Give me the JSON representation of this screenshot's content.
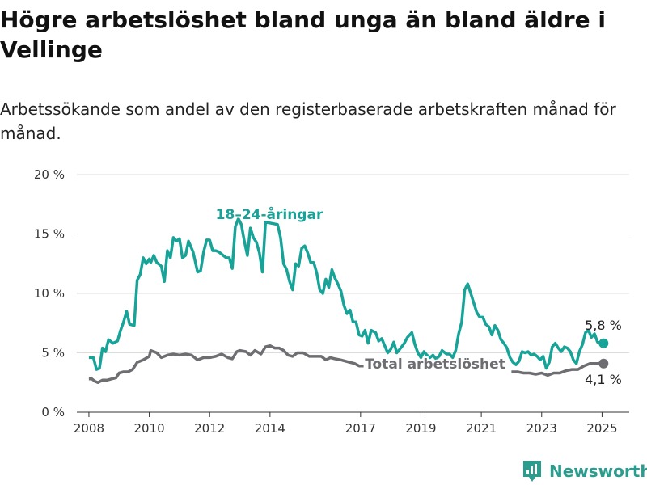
{
  "title": "Högre arbetslöshet bland unga än bland äldre i Vellinge",
  "subtitle": "Arbetssökande som andel av den registerbaserade arbetskraften månad för månad.",
  "brand": {
    "name": "Newsworthy"
  },
  "colors": {
    "youth": "#17a398",
    "total": "#6d6d72",
    "grid": "#dcdcdc",
    "axis": "#333333",
    "brand": "#2a9d8f"
  },
  "chart_data": {
    "type": "line",
    "ylim": [
      0,
      20
    ],
    "xlim": [
      2007.6,
      2025.9
    ],
    "y_ticks": [
      0,
      5,
      10,
      15,
      20
    ],
    "y_tick_labels": [
      "0 %",
      "5 %",
      "10 %",
      "15 %",
      "20 %"
    ],
    "x_ticks": [
      2008,
      2010,
      2012,
      2014,
      2017,
      2019,
      2021,
      2023,
      2025
    ],
    "x_tick_labels": [
      "2008",
      "2010",
      "2012",
      "2014",
      "2017",
      "2019",
      "2021",
      "2023",
      "2025"
    ],
    "grid": true,
    "series": [
      {
        "name": "18–24-åringar",
        "color": "#17a398",
        "end_value_label": "5,8 %",
        "points": [
          [
            2008.0,
            4.6
          ],
          [
            2008.15,
            4.6
          ],
          [
            2008.25,
            3.6
          ],
          [
            2008.35,
            3.7
          ],
          [
            2008.45,
            5.4
          ],
          [
            2008.55,
            5.1
          ],
          [
            2008.65,
            6.1
          ],
          [
            2008.8,
            5.8
          ],
          [
            2008.95,
            6.0
          ],
          [
            2009.05,
            6.9
          ],
          [
            2009.15,
            7.6
          ],
          [
            2009.25,
            8.5
          ],
          [
            2009.35,
            7.4
          ],
          [
            2009.5,
            7.3
          ],
          [
            2009.6,
            11.1
          ],
          [
            2009.7,
            11.6
          ],
          [
            2009.8,
            13.0
          ],
          [
            2009.9,
            12.5
          ],
          [
            2010.0,
            12.9
          ],
          [
            2010.05,
            12.6
          ],
          [
            2010.15,
            13.2
          ],
          [
            2010.25,
            12.6
          ],
          [
            2010.4,
            12.3
          ],
          [
            2010.5,
            11.0
          ],
          [
            2010.6,
            13.6
          ],
          [
            2010.7,
            13.0
          ],
          [
            2010.8,
            14.7
          ],
          [
            2010.9,
            14.4
          ],
          [
            2011.0,
            14.6
          ],
          [
            2011.1,
            13.0
          ],
          [
            2011.2,
            13.2
          ],
          [
            2011.3,
            14.4
          ],
          [
            2011.45,
            13.5
          ],
          [
            2011.6,
            11.8
          ],
          [
            2011.7,
            11.9
          ],
          [
            2011.8,
            13.5
          ],
          [
            2011.9,
            14.5
          ],
          [
            2012.0,
            14.5
          ],
          [
            2012.1,
            13.6
          ],
          [
            2012.2,
            13.6
          ],
          [
            2012.3,
            13.5
          ],
          [
            2012.45,
            13.2
          ],
          [
            2012.55,
            13.0
          ],
          [
            2012.65,
            13.0
          ],
          [
            2012.75,
            12.1
          ],
          [
            2012.85,
            15.6
          ],
          [
            2012.95,
            16.3
          ],
          [
            2013.05,
            15.8
          ],
          [
            2013.15,
            14.4
          ],
          [
            2013.25,
            13.2
          ],
          [
            2013.35,
            15.5
          ],
          [
            2013.45,
            14.7
          ],
          [
            2013.55,
            14.3
          ],
          [
            2013.65,
            13.4
          ],
          [
            2013.75,
            11.8
          ],
          [
            2013.85,
            16.0
          ],
          [
            2014.25,
            15.8
          ],
          [
            2014.35,
            14.7
          ],
          [
            2014.45,
            12.5
          ],
          [
            2014.55,
            12.0
          ],
          [
            2014.65,
            11.0
          ],
          [
            2014.75,
            10.3
          ],
          [
            2014.85,
            12.5
          ],
          [
            2014.95,
            12.3
          ],
          [
            2015.05,
            13.8
          ],
          [
            2015.15,
            14.0
          ],
          [
            2015.25,
            13.4
          ],
          [
            2015.35,
            12.6
          ],
          [
            2015.45,
            12.6
          ],
          [
            2015.55,
            11.7
          ],
          [
            2015.65,
            10.3
          ],
          [
            2015.75,
            10.0
          ],
          [
            2015.85,
            11.2
          ],
          [
            2015.95,
            10.5
          ],
          [
            2016.05,
            12.0
          ],
          [
            2016.15,
            11.3
          ],
          [
            2016.25,
            10.8
          ],
          [
            2016.35,
            10.2
          ],
          [
            2016.45,
            9.0
          ],
          [
            2016.55,
            8.3
          ],
          [
            2016.65,
            8.6
          ],
          [
            2016.75,
            7.6
          ],
          [
            2016.85,
            7.6
          ],
          [
            2016.95,
            6.5
          ],
          [
            2017.05,
            6.4
          ],
          [
            2017.15,
            6.9
          ],
          [
            2017.25,
            5.8
          ],
          [
            2017.35,
            6.9
          ],
          [
            2017.5,
            6.7
          ],
          [
            2017.6,
            6.0
          ],
          [
            2017.7,
            6.2
          ],
          [
            2017.8,
            5.6
          ],
          [
            2017.9,
            5.0
          ],
          [
            2018.0,
            5.3
          ],
          [
            2018.1,
            5.9
          ],
          [
            2018.2,
            5.0
          ],
          [
            2018.3,
            5.3
          ],
          [
            2018.45,
            5.8
          ],
          [
            2018.55,
            6.3
          ],
          [
            2018.7,
            6.7
          ],
          [
            2018.8,
            5.7
          ],
          [
            2018.9,
            5.0
          ],
          [
            2019.0,
            4.6
          ],
          [
            2019.1,
            5.1
          ],
          [
            2019.2,
            4.8
          ],
          [
            2019.3,
            4.6
          ],
          [
            2019.4,
            4.8
          ],
          [
            2019.5,
            4.5
          ],
          [
            2019.6,
            4.7
          ],
          [
            2019.7,
            5.2
          ],
          [
            2019.85,
            4.9
          ],
          [
            2019.95,
            4.9
          ],
          [
            2020.05,
            4.6
          ],
          [
            2020.15,
            5.2
          ],
          [
            2020.25,
            6.6
          ],
          [
            2020.35,
            7.6
          ],
          [
            2020.45,
            10.3
          ],
          [
            2020.55,
            10.8
          ],
          [
            2020.65,
            10.0
          ],
          [
            2020.75,
            9.2
          ],
          [
            2020.85,
            8.4
          ],
          [
            2020.95,
            8.0
          ],
          [
            2021.05,
            8.0
          ],
          [
            2021.15,
            7.4
          ],
          [
            2021.25,
            7.2
          ],
          [
            2021.35,
            6.5
          ],
          [
            2021.45,
            7.3
          ],
          [
            2021.55,
            6.9
          ],
          [
            2021.65,
            6.1
          ],
          [
            2021.75,
            5.8
          ],
          [
            2021.85,
            5.4
          ],
          [
            2021.95,
            4.6
          ],
          [
            2022.05,
            4.2
          ],
          [
            2022.15,
            4.0
          ],
          [
            2022.25,
            4.3
          ],
          [
            2022.35,
            5.1
          ],
          [
            2022.45,
            5.0
          ],
          [
            2022.55,
            5.1
          ],
          [
            2022.65,
            4.8
          ],
          [
            2022.75,
            4.9
          ],
          [
            2022.85,
            4.7
          ],
          [
            2022.95,
            4.4
          ],
          [
            2023.05,
            4.7
          ],
          [
            2023.15,
            3.7
          ],
          [
            2023.25,
            4.2
          ],
          [
            2023.35,
            5.5
          ],
          [
            2023.45,
            5.8
          ],
          [
            2023.55,
            5.4
          ],
          [
            2023.65,
            5.1
          ],
          [
            2023.75,
            5.5
          ],
          [
            2023.85,
            5.4
          ],
          [
            2023.95,
            5.1
          ],
          [
            2024.05,
            4.4
          ],
          [
            2024.15,
            4.1
          ],
          [
            2024.25,
            5.1
          ],
          [
            2024.35,
            5.7
          ],
          [
            2024.45,
            6.7
          ],
          [
            2024.55,
            6.9
          ],
          [
            2024.65,
            6.3
          ],
          [
            2024.75,
            6.6
          ],
          [
            2024.85,
            5.9
          ],
          [
            2025.05,
            5.8
          ]
        ]
      },
      {
        "name": "Total arbetslöshet",
        "color": "#6d6d72",
        "end_value_label": "4,1 %",
        "points": [
          [
            2008.0,
            2.8
          ],
          [
            2008.1,
            2.8
          ],
          [
            2008.2,
            2.6
          ],
          [
            2008.3,
            2.5
          ],
          [
            2008.45,
            2.7
          ],
          [
            2008.6,
            2.7
          ],
          [
            2008.75,
            2.8
          ],
          [
            2008.9,
            2.9
          ],
          [
            2009.0,
            3.3
          ],
          [
            2009.15,
            3.4
          ],
          [
            2009.3,
            3.4
          ],
          [
            2009.45,
            3.6
          ],
          [
            2009.6,
            4.2
          ],
          [
            2009.8,
            4.4
          ],
          [
            2010.0,
            4.7
          ],
          [
            2010.05,
            5.2
          ],
          [
            2010.25,
            5.0
          ],
          [
            2010.4,
            4.6
          ],
          [
            2010.6,
            4.8
          ],
          [
            2010.8,
            4.9
          ],
          [
            2011.0,
            4.8
          ],
          [
            2011.2,
            4.9
          ],
          [
            2011.4,
            4.8
          ],
          [
            2011.6,
            4.4
          ],
          [
            2011.8,
            4.6
          ],
          [
            2012.0,
            4.6
          ],
          [
            2012.2,
            4.7
          ],
          [
            2012.4,
            4.9
          ],
          [
            2012.6,
            4.6
          ],
          [
            2012.75,
            4.5
          ],
          [
            2012.9,
            5.1
          ],
          [
            2013.0,
            5.2
          ],
          [
            2013.2,
            5.1
          ],
          [
            2013.35,
            4.8
          ],
          [
            2013.5,
            5.2
          ],
          [
            2013.7,
            4.9
          ],
          [
            2013.85,
            5.5
          ],
          [
            2014.0,
            5.6
          ],
          [
            2014.15,
            5.4
          ],
          [
            2014.3,
            5.4
          ],
          [
            2014.45,
            5.2
          ],
          [
            2014.6,
            4.8
          ],
          [
            2014.75,
            4.7
          ],
          [
            2014.9,
            5.0
          ],
          [
            2015.1,
            5.0
          ],
          [
            2015.3,
            4.7
          ],
          [
            2015.5,
            4.7
          ],
          [
            2015.7,
            4.7
          ],
          [
            2015.85,
            4.4
          ],
          [
            2016.0,
            4.6
          ],
          [
            2016.15,
            4.5
          ],
          [
            2016.35,
            4.4
          ],
          [
            2016.5,
            4.3
          ],
          [
            2016.65,
            4.2
          ],
          [
            2016.8,
            4.1
          ],
          [
            2016.95,
            3.9
          ],
          [
            2017.1,
            3.9
          ]
        ],
        "points_after_label": [
          [
            2022.0,
            3.4
          ],
          [
            2022.2,
            3.4
          ],
          [
            2022.4,
            3.3
          ],
          [
            2022.6,
            3.3
          ],
          [
            2022.8,
            3.2
          ],
          [
            2023.0,
            3.3
          ],
          [
            2023.2,
            3.1
          ],
          [
            2023.4,
            3.3
          ],
          [
            2023.6,
            3.3
          ],
          [
            2023.8,
            3.5
          ],
          [
            2024.0,
            3.6
          ],
          [
            2024.2,
            3.6
          ],
          [
            2024.4,
            3.9
          ],
          [
            2024.6,
            4.1
          ],
          [
            2024.8,
            4.1
          ],
          [
            2025.05,
            4.1
          ]
        ]
      }
    ]
  }
}
